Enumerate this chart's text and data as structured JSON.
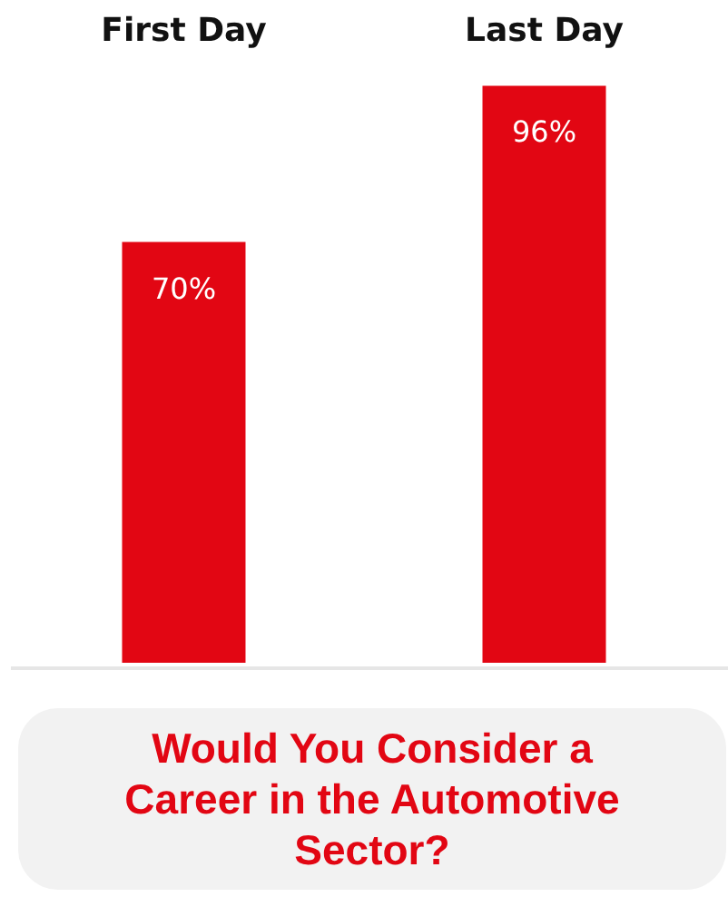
{
  "chart_data": {
    "type": "bar",
    "title": "Would You Consider a Career in the Automotive Sector?",
    "categories": [
      "First Day",
      "Last Day"
    ],
    "values": [
      70,
      96
    ],
    "value_labels": [
      "70%",
      "96%"
    ],
    "color": "#e20613",
    "grid": false
  }
}
